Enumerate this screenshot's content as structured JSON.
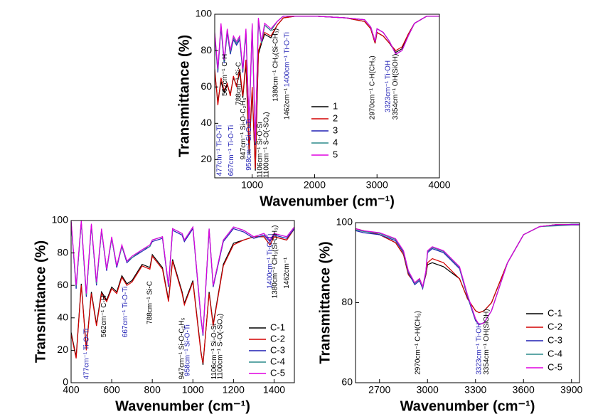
{
  "chart_data": [
    {
      "type": "line",
      "xlabel": "Wavenumber (cm⁻¹)",
      "ylabel": "Transmittance (%)",
      "xlim": [
        400,
        4000
      ],
      "xticks": [
        1000,
        2000,
        3000,
        4000
      ],
      "ylim": [
        10,
        100
      ],
      "yticks": [
        20,
        40,
        60,
        80,
        100
      ],
      "legend": "lower right",
      "x": [
        400,
        450,
        500,
        550,
        600,
        650,
        700,
        750,
        800,
        850,
        900,
        950,
        1000,
        1050,
        1100,
        1150,
        1200,
        1300,
        1400,
        1500,
        1700,
        2000,
        2500,
        2800,
        2900,
        2970,
        3000,
        3100,
        3200,
        3300,
        3400,
        3500,
        3600,
        3800,
        4000
      ],
      "series": [
        {
          "name": "1",
          "color": "#000000",
          "values": [
            68,
            52,
            63,
            57,
            61,
            56,
            65,
            61,
            68,
            54,
            73,
            23,
            58,
            14,
            78,
            84,
            89,
            87,
            94,
            98,
            99,
            99,
            98,
            96,
            92,
            84,
            90,
            88,
            84,
            79,
            81,
            89,
            95,
            99,
            99
          ]
        },
        {
          "name": "2",
          "color": "#d40000",
          "values": [
            70,
            50,
            65,
            58,
            62,
            55,
            66,
            60,
            70,
            55,
            75,
            25,
            60,
            15,
            80,
            85,
            90,
            88,
            94,
            98,
            99,
            99,
            98,
            96,
            92,
            84,
            90,
            88,
            84,
            80,
            82,
            89,
            95,
            99,
            99
          ]
        },
        {
          "name": "3",
          "color": "#1f1fb4",
          "values": [
            88,
            68,
            93,
            73,
            90,
            78,
            86,
            83,
            86,
            68,
            90,
            38,
            93,
            28,
            96,
            84,
            94,
            91,
            96,
            99,
            99,
            99,
            98,
            97,
            93,
            85,
            92,
            90,
            85,
            78,
            80,
            88,
            95,
            99,
            99
          ]
        },
        {
          "name": "4",
          "color": "#2a8a8a",
          "values": [
            89,
            69,
            94,
            74,
            91,
            79,
            87,
            84,
            87,
            69,
            91,
            39,
            94,
            29,
            97,
            84,
            94,
            91,
            96,
            99,
            99,
            99,
            98,
            97,
            93,
            85,
            92,
            90,
            85,
            78,
            80,
            88,
            95,
            99,
            99
          ]
        },
        {
          "name": "5",
          "color": "#e000e0",
          "values": [
            90,
            70,
            95,
            75,
            92,
            80,
            88,
            85,
            88,
            70,
            92,
            40,
            95,
            30,
            98,
            85,
            95,
            92,
            96,
            99,
            99,
            99,
            98,
            97,
            93,
            85,
            92,
            90,
            85,
            78,
            80,
            88,
            95,
            99,
            99
          ]
        }
      ],
      "annotations": [
        {
          "text": "477cm⁻¹ Ti-O-Ti",
          "x": 477,
          "y": 11,
          "color": "#1f1fb4"
        },
        {
          "text": "562cm⁻¹ C-H",
          "x": 562,
          "y": 55,
          "color": "#000000"
        },
        {
          "text": "667cm⁻¹ Ti-O-Ti",
          "x": 667,
          "y": 11,
          "color": "#1f1fb4"
        },
        {
          "text": "788cm⁻¹ Si-C",
          "x": 788,
          "y": 50,
          "color": "#000000"
        },
        {
          "text": "947cm⁻¹ Si-O-C₂H₅",
          "x": 860,
          "y": 20,
          "color": "#000000"
        },
        {
          "text": "958cm⁻¹ Si-O-Ti",
          "x": 950,
          "y": 14,
          "color": "#1f1fb4"
        },
        {
          "text": "1106cm⁻¹ Si-O-Si",
          "x": 1130,
          "y": 10,
          "color": "#000000"
        },
        {
          "text": "1100cm⁻¹ S-O(-SO₄)",
          "x": 1230,
          "y": 10,
          "color": "#000000"
        },
        {
          "text": "1380cm⁻¹ CH₃(Si-CH₃)",
          "x": 1380,
          "y": 52,
          "color": "#000000"
        },
        {
          "text": "1400cm⁻¹ Ti-O-Ti",
          "x": 1560,
          "y": 60,
          "color": "#1f1fb4"
        },
        {
          "text": "1462cm⁻¹",
          "x": 1560,
          "y": 42,
          "color": "#000000"
        },
        {
          "text": "2970cm⁻¹ C-H(CH₃)",
          "x": 2930,
          "y": 42,
          "color": "#000000"
        },
        {
          "text": "3323cm⁻¹ Ti-OH",
          "x": 3180,
          "y": 46,
          "color": "#1f1fb4"
        },
        {
          "text": "3354cm⁻¹ OH(SiOH)",
          "x": 3300,
          "y": 42,
          "color": "#000000"
        }
      ]
    },
    {
      "type": "line",
      "xlabel": "Wavenumber (cm⁻¹)",
      "ylabel": "Transmittance (%)",
      "xlim": [
        400,
        1500
      ],
      "xticks": [
        400,
        600,
        800,
        1000,
        1200,
        1400
      ],
      "ylim": [
        0,
        100
      ],
      "yticks": [
        0,
        20,
        40,
        60,
        80,
        100
      ],
      "legend": "lower right",
      "x": [
        400,
        425,
        450,
        475,
        500,
        525,
        550,
        575,
        600,
        625,
        650,
        675,
        700,
        750,
        788,
        800,
        850,
        880,
        900,
        947,
        958,
        1000,
        1040,
        1050,
        1080,
        1100,
        1150,
        1200,
        1250,
        1300,
        1350,
        1380,
        1400,
        1462,
        1500
      ],
      "series": [
        {
          "name": "C-1",
          "color": "#000000",
          "values": [
            31,
            16,
            61,
            21,
            56,
            36,
            56,
            51,
            59,
            56,
            66,
            61,
            63,
            73,
            71,
            79,
            71,
            51,
            76,
            56,
            49,
            63,
            19,
            11,
            56,
            36,
            73,
            86,
            88,
            90,
            90,
            85,
            90,
            88,
            95
          ]
        },
        {
          "name": "C-2",
          "color": "#d40000",
          "values": [
            30,
            15,
            60,
            20,
            55,
            35,
            55,
            50,
            58,
            55,
            65,
            60,
            62,
            72,
            70,
            78,
            70,
            50,
            75,
            55,
            48,
            62,
            18,
            12,
            55,
            35,
            72,
            85,
            88,
            90,
            90,
            85,
            90,
            88,
            95
          ]
        },
        {
          "name": "C-3",
          "color": "#1f1fb4",
          "values": [
            99,
            58,
            99,
            53,
            97,
            60,
            94,
            69,
            89,
            71,
            84,
            74,
            77,
            81,
            84,
            87,
            89,
            59,
            94,
            91,
            87,
            95,
            39,
            29,
            94,
            59,
            87,
            95,
            93,
            89,
            91,
            87,
            91,
            89,
            95
          ]
        },
        {
          "name": "C-4",
          "color": "#2a8a8a",
          "values": [
            99,
            59,
            99,
            54,
            97,
            61,
            94,
            70,
            89,
            72,
            84,
            75,
            77,
            82,
            84,
            88,
            90,
            60,
            95,
            92,
            88,
            96,
            40,
            30,
            95,
            60,
            88,
            96,
            94,
            90,
            92,
            88,
            92,
            90,
            96
          ]
        },
        {
          "name": "C-5",
          "color": "#e000e0",
          "values": [
            100,
            60,
            100,
            55,
            98,
            62,
            95,
            70,
            90,
            72,
            85,
            75,
            78,
            82,
            85,
            88,
            90,
            60,
            95,
            92,
            88,
            96,
            40,
            30,
            95,
            60,
            88,
            96,
            94,
            90,
            92,
            88,
            92,
            90,
            96
          ]
        }
      ],
      "annotations": [
        {
          "text": "477cm⁻¹ Ti-O-Ti",
          "x": 477,
          "y": 2,
          "color": "#1f1fb4"
        },
        {
          "text": "562cm⁻¹ C-H",
          "x": 562,
          "y": 28,
          "color": "#000000"
        },
        {
          "text": "667cm⁻¹ Ti-O-Ti",
          "x": 667,
          "y": 28,
          "color": "#1f1fb4"
        },
        {
          "text": "788cm⁻¹ Si-C",
          "x": 788,
          "y": 36,
          "color": "#000000"
        },
        {
          "text": "947cm⁻¹ Si-O-C₂H₅",
          "x": 947,
          "y": 2,
          "color": "#000000"
        },
        {
          "text": "958cm⁻¹ Si-O-Ti",
          "x": 975,
          "y": 4,
          "color": "#1f1fb4"
        },
        {
          "text": "1106cm⁻¹ Si-O-Si",
          "x": 1106,
          "y": 2,
          "color": "#000000"
        },
        {
          "text": "1100cm⁻¹ S-O(-SO₄)",
          "x": 1135,
          "y": 2,
          "color": "#000000"
        },
        {
          "text": "1400cm⁻¹ Ti-O-Ti",
          "x": 1380,
          "y": 58,
          "color": "#1f1fb4"
        },
        {
          "text": "1380cm⁻¹ CH₃(Si-CH₃)",
          "x": 1405,
          "y": 52,
          "color": "#000000"
        },
        {
          "text": "1462cm⁻¹",
          "x": 1462,
          "y": 58,
          "color": "#000000"
        }
      ]
    },
    {
      "type": "line",
      "xlabel": "Wavenumber (cm⁻¹)",
      "ylabel": "Transmittance (%)",
      "xlim": [
        2550,
        3950
      ],
      "xticks": [
        2700,
        3000,
        3300,
        3600,
        3900
      ],
      "ylim": [
        60,
        100
      ],
      "yticks": [
        60,
        80,
        100
      ],
      "legend": "lower right",
      "x": [
        2550,
        2600,
        2700,
        2800,
        2850,
        2880,
        2920,
        2950,
        2970,
        2990,
        3000,
        3030,
        3100,
        3200,
        3250,
        3300,
        3323,
        3354,
        3400,
        3450,
        3500,
        3600,
        3700,
        3800,
        3900,
        3950
      ],
      "series": [
        {
          "name": "C-1",
          "color": "#000000",
          "values": [
            98.5,
            98,
            97,
            95,
            92,
            87,
            85,
            86,
            84,
            87,
            89.5,
            90,
            89,
            86,
            81,
            78,
            77.5,
            78,
            80,
            85,
            90,
            97,
            99,
            99.5,
            99.5,
            99.5
          ]
        },
        {
          "name": "C-2",
          "color": "#d40000",
          "values": [
            98.5,
            98,
            97,
            95,
            92,
            87,
            85,
            86,
            84,
            87,
            90,
            91,
            90,
            86,
            81,
            78,
            77.5,
            78,
            80,
            85,
            90,
            97,
            99,
            99.5,
            99.5,
            99.5
          ]
        },
        {
          "name": "C-3",
          "color": "#1f1fb4",
          "values": [
            98,
            97.5,
            97,
            95.5,
            92.5,
            87.5,
            84.5,
            85.5,
            83.5,
            87.5,
            92.5,
            93.5,
            92.5,
            88.5,
            81.5,
            75.5,
            74.5,
            75,
            78,
            84,
            90,
            97,
            99,
            99.3,
            99.6,
            99.6
          ]
        },
        {
          "name": "C-4",
          "color": "#2a8a8a",
          "values": [
            98.2,
            97.8,
            97.3,
            95.8,
            92.8,
            87.8,
            84.8,
            85.8,
            83.8,
            87.8,
            92.8,
            93.8,
            92.8,
            88.8,
            81.8,
            75.8,
            74.5,
            75,
            78,
            84,
            90,
            97,
            99,
            99.2,
            99.4,
            99.4
          ]
        },
        {
          "name": "C-5",
          "color": "#e000e0",
          "values": [
            98.5,
            98,
            97.5,
            96,
            93,
            88,
            85,
            86,
            84,
            88,
            93,
            94,
            93,
            89,
            82,
            76,
            74.5,
            75,
            78,
            84,
            90,
            97,
            99,
            99.5,
            99.5,
            99.5
          ]
        }
      ],
      "annotations": [
        {
          "text": "2970cm⁻¹ C-H(CH₃)",
          "x": 2940,
          "y": 62,
          "color": "#000000"
        },
        {
          "text": "3323cm⁻¹ Ti-OH",
          "x": 3323,
          "y": 62,
          "color": "#1f1fb4"
        },
        {
          "text": "3354cm⁻¹ OH(SiOH)",
          "x": 3370,
          "y": 62,
          "color": "#000000"
        }
      ]
    }
  ]
}
